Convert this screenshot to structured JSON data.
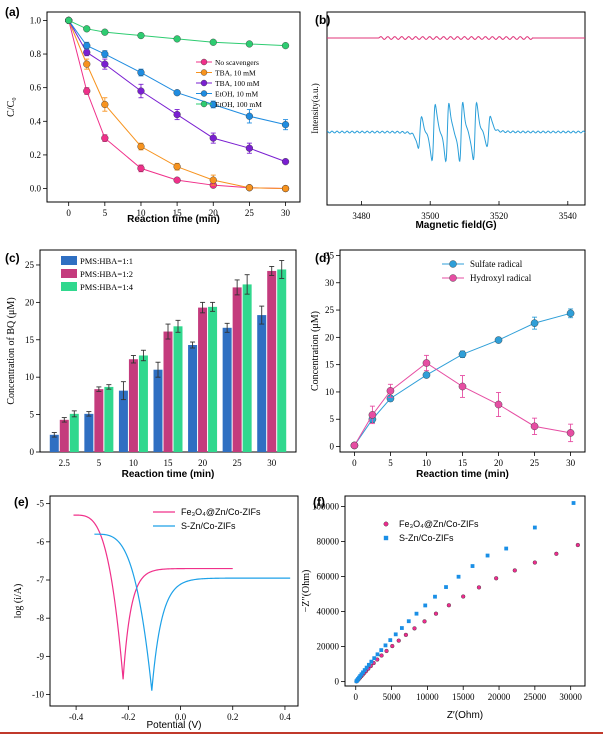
{
  "figure": {
    "colors": {
      "black": "#000000",
      "orange": "#f7931e",
      "purple": "#7a1fd1",
      "blue": "#1f8ce0",
      "green": "#2ecc71",
      "pink": "#e0359c",
      "epr_top": "#e0357a",
      "epr_bottom": "#2b9fd9",
      "bar1": "#2f6fc2",
      "bar2": "#c43b7d",
      "bar3": "#30d88e",
      "sulfate": "#2f9fd8",
      "hydroxyl": "#e64ea3",
      "tafel1": "#f0308a",
      "tafel2": "#1da1e8",
      "eis1": "#ee2c8e",
      "eis2": "#1a8fe6"
    }
  },
  "chart_data": [
    {
      "panel": "(a)",
      "type": "line",
      "xlabel": "Reaction time (min)",
      "ylabel": "C/C₀",
      "xlim": [
        -3,
        32
      ],
      "ylim": [
        -0.08,
        1.05
      ],
      "xticks": [
        0,
        5,
        10,
        15,
        20,
        25,
        30
      ],
      "yticks": [
        0.0,
        0.2,
        0.4,
        0.6,
        0.8,
        1.0
      ],
      "yticklabels": [
        "0.0",
        "0.2",
        "0.4",
        "0.6",
        "0.8",
        "1.0"
      ],
      "series": [
        {
          "name": "No scavengers",
          "color": "#f0308a",
          "x": [
            0,
            2.5,
            5,
            10,
            15,
            20,
            25,
            30
          ],
          "y": [
            1.0,
            0.58,
            0.3,
            0.12,
            0.05,
            0.02,
            0.005,
            0.0
          ],
          "err": [
            0,
            0.02,
            0.02,
            0.02,
            0.01,
            0.01,
            0.005,
            0.005
          ]
        },
        {
          "name": "TBA,  10 mM",
          "color": "#f7931e",
          "x": [
            0,
            2.5,
            5,
            10,
            15,
            20,
            25,
            30
          ],
          "y": [
            1.0,
            0.74,
            0.5,
            0.25,
            0.13,
            0.05,
            0.005,
            0.0
          ],
          "err": [
            0,
            0.03,
            0.04,
            0.02,
            0.02,
            0.03,
            0.005,
            0.005
          ]
        },
        {
          "name": "TBA,  100 mM",
          "color": "#7a1fd1",
          "x": [
            0,
            2.5,
            5,
            10,
            15,
            20,
            25,
            30
          ],
          "y": [
            1.0,
            0.81,
            0.74,
            0.58,
            0.44,
            0.3,
            0.24,
            0.16
          ],
          "err": [
            0,
            0.02,
            0.03,
            0.04,
            0.03,
            0.03,
            0.03,
            0.01
          ]
        },
        {
          "name": "EtOH,  10 mM",
          "color": "#1f8ce0",
          "x": [
            0,
            2.5,
            5,
            10,
            15,
            20,
            25,
            30
          ],
          "y": [
            1.0,
            0.85,
            0.8,
            0.69,
            0.57,
            0.5,
            0.43,
            0.38
          ],
          "err": [
            0,
            0.02,
            0.02,
            0.02,
            0.01,
            0.02,
            0.04,
            0.03
          ]
        },
        {
          "name": "EtOH,  100 mM",
          "color": "#2ecc71",
          "x": [
            0,
            2.5,
            5,
            10,
            15,
            20,
            25,
            30
          ],
          "y": [
            1.0,
            0.95,
            0.93,
            0.91,
            0.89,
            0.87,
            0.86,
            0.85
          ],
          "err": [
            0,
            0.01,
            0.01,
            0.01,
            0.01,
            0.01,
            0.01,
            0.01
          ]
        }
      ]
    },
    {
      "panel": "(b)",
      "type": "line",
      "xlabel": "Magnetic field(G)",
      "ylabel": "Intensity(a.u.)",
      "xlim": [
        3470,
        3545
      ],
      "xticks": [
        3480,
        3500,
        3520,
        3540
      ],
      "lines": [
        {
          "name": "upper trace",
          "color": "#e0357a",
          "baseline": 0.86,
          "amplitude": 0.01
        },
        {
          "name": "lower trace",
          "color": "#2b9fd9",
          "baseline": 0.34,
          "amplitude": 0.25,
          "peaks": [
            3497,
            3501,
            3505,
            3509,
            3513,
            3517
          ]
        }
      ]
    },
    {
      "panel": "(c)",
      "type": "bar",
      "xlabel": "Reaction time (min)",
      "ylabel": "Concentration of BQ (μM)",
      "categories": [
        "2.5",
        "5",
        "10",
        "15",
        "20",
        "25",
        "30"
      ],
      "ylim": [
        0,
        27
      ],
      "yticks": [
        0,
        5,
        10,
        15,
        20,
        25
      ],
      "series": [
        {
          "name": "PMS:HBA=1:1",
          "color": "#2f6fc2",
          "values": [
            2.3,
            5.1,
            8.2,
            11.0,
            14.3,
            16.6,
            18.3
          ],
          "err": [
            0.3,
            0.3,
            1.2,
            1.0,
            0.4,
            0.6,
            1.2
          ]
        },
        {
          "name": "PMS:HBA=1:2",
          "color": "#c43b7d",
          "values": [
            4.3,
            8.4,
            12.4,
            16.1,
            19.3,
            22.0,
            24.2
          ],
          "err": [
            0.3,
            0.3,
            0.5,
            1.0,
            0.7,
            1.0,
            0.6
          ]
        },
        {
          "name": "PMS:HBA=1:4",
          "color": "#30d88e",
          "values": [
            5.1,
            8.7,
            12.9,
            16.8,
            19.4,
            22.4,
            24.4
          ],
          "err": [
            0.4,
            0.3,
            0.7,
            0.8,
            0.6,
            1.3,
            1.2
          ]
        }
      ]
    },
    {
      "panel": "(d)",
      "type": "line",
      "xlabel": "Reaction time (min)",
      "ylabel": "Concentration (μM)",
      "xlim": [
        -2,
        32
      ],
      "ylim": [
        -1,
        36
      ],
      "xticks": [
        0,
        5,
        10,
        15,
        20,
        25,
        30
      ],
      "yticks": [
        0,
        5,
        10,
        15,
        20,
        25,
        30,
        35
      ],
      "series": [
        {
          "name": "Sulfate radical",
          "color": "#2f9fd8",
          "x": [
            0,
            2.5,
            5,
            10,
            15,
            20,
            25,
            30
          ],
          "y": [
            0.2,
            5.0,
            8.8,
            13.1,
            16.9,
            19.5,
            22.6,
            24.4
          ],
          "err": [
            0,
            0.6,
            0.5,
            0.4,
            0.6,
            0.4,
            1.1,
            0.8
          ]
        },
        {
          "name": "Hydroxyl radical",
          "color": "#e64ea3",
          "x": [
            0,
            2.5,
            5,
            10,
            15,
            20,
            25,
            30
          ],
          "y": [
            0.2,
            5.8,
            10.2,
            15.3,
            11.0,
            7.7,
            3.7,
            2.5
          ],
          "err": [
            0,
            1.6,
            1.2,
            1.4,
            2.0,
            2.2,
            1.5,
            1.6
          ]
        }
      ]
    },
    {
      "panel": "(e)",
      "type": "line",
      "xlabel": "Potential (V)",
      "ylabel": "log (i/A)",
      "xlim": [
        -0.5,
        0.45
      ],
      "ylim": [
        -10.3,
        -4.8
      ],
      "xticks": [
        -0.4,
        -0.2,
        0.0,
        0.2,
        0.4
      ],
      "xticklabels": [
        "-0.4",
        "-0.2",
        "0.0",
        "0.2",
        "0.4"
      ],
      "yticks": [
        -5,
        -6,
        -7,
        -8,
        -9,
        -10
      ],
      "yticklabels": [
        "-5",
        "-6",
        "-7",
        "-8",
        "-9",
        "-10"
      ],
      "series": [
        {
          "name": "Fe₃O₄@Zn/Co-ZIFs",
          "color": "#f0308a",
          "ecorr": -0.22,
          "min": -9.6,
          "start": [
            -0.41,
            -5.3
          ],
          "end": [
            0.2,
            -6.7
          ],
          "plateau": -6.7
        },
        {
          "name": "S-Zn/Co-ZIFs",
          "color": "#1da1e8",
          "ecorr": -0.11,
          "min": -9.9,
          "start": [
            -0.33,
            -5.8
          ],
          "end": [
            0.42,
            -6.95
          ],
          "plateau": -6.95
        }
      ]
    },
    {
      "panel": "(f)",
      "type": "scatter",
      "xlabel": "Z′(Ohm)",
      "ylabel": "−Z′′(Ohm)",
      "xlim": [
        -1500,
        32000
      ],
      "ylim": [
        -2500,
        106000
      ],
      "xticks": [
        0,
        5000,
        10000,
        15000,
        20000,
        25000,
        30000
      ],
      "yticks": [
        0,
        20000,
        40000,
        60000,
        80000,
        100000
      ],
      "series": [
        {
          "name": "Fe₃O₄@Zn/Co-ZIFs",
          "color": "#ee2c8e",
          "x": [
            100,
            200,
            320,
            450,
            600,
            780,
            980,
            1200,
            1450,
            1750,
            2100,
            2500,
            3000,
            3600,
            4300,
            5100,
            6000,
            7000,
            8200,
            9600,
            11200,
            13000,
            15000,
            17200,
            19600,
            22200,
            25000,
            28000,
            31000
          ],
          "y": [
            150,
            500,
            1000,
            1600,
            2300,
            3100,
            4000,
            5000,
            6100,
            7400,
            8900,
            10600,
            12600,
            14900,
            17500,
            20300,
            23400,
            26700,
            30400,
            34400,
            38800,
            43600,
            48600,
            53800,
            59000,
            63500,
            68000,
            73000,
            78000
          ]
        },
        {
          "name": "S-Zn/Co-ZIFs",
          "color": "#1a8fe6",
          "x": [
            100,
            200,
            320,
            460,
            620,
            800,
            1010,
            1250,
            1520,
            1830,
            2180,
            2580,
            3040,
            3560,
            4150,
            4820,
            5580,
            6440,
            7400,
            8480,
            9700,
            11060,
            12600,
            14350,
            16300,
            18400,
            21000,
            25000,
            30400
          ],
          "y": [
            250,
            800,
            1500,
            2300,
            3200,
            4200,
            5300,
            6600,
            8000,
            9600,
            11400,
            13400,
            15600,
            18000,
            20700,
            23700,
            27000,
            30600,
            34500,
            38800,
            43500,
            48500,
            54000,
            59900,
            66000,
            72000,
            76000,
            88000,
            102000
          ]
        }
      ]
    }
  ]
}
